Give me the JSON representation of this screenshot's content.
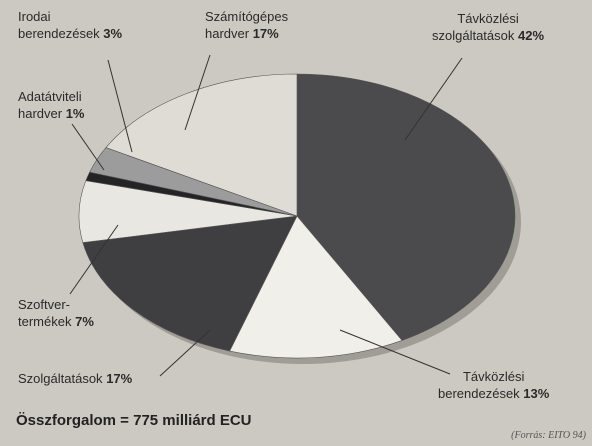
{
  "chart_data": {
    "type": "pie",
    "categories": [
      "Távközlési\nszolgáltatások",
      "Távközlési\nberendezések",
      "Szolgáltatások",
      "Szoftver-\ntermékek",
      "Adatátviteli\nhardver",
      "Irodai\nberendezések",
      "Számítógépes\nhardver"
    ],
    "values": [
      42,
      13,
      17,
      7,
      1,
      3,
      17
    ],
    "value_labels": [
      "42%",
      "13%",
      "17%",
      "7%",
      "1%",
      "3%",
      "17%"
    ],
    "colors": [
      "#4b4a4d",
      "#f1efe9",
      "#3f3e41",
      "#e9e7e1",
      "#242326",
      "#9d9c9c",
      "#dedcd4"
    ],
    "start_angle": 0,
    "direction": "clockwise",
    "annotations": [
      "Összforgalom = 775 milliárd ECU",
      "(Forrás: EITO 94)"
    ]
  }
}
